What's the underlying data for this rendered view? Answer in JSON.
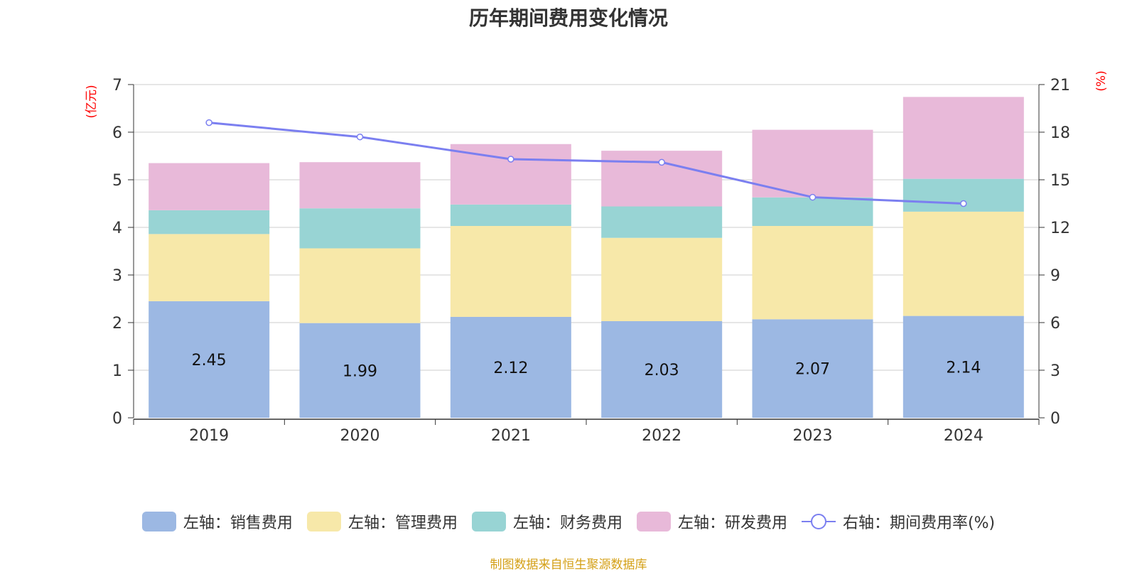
{
  "chart_data": {
    "type": "bar",
    "stacked": true,
    "title": "历年期间费用变化情况",
    "categories": [
      "2019",
      "2020",
      "2021",
      "2022",
      "2023",
      "2024"
    ],
    "left_axis": {
      "unit_label": "(亿元)",
      "ylim": [
        0,
        7
      ],
      "ticks": [
        0,
        1,
        2,
        3,
        4,
        5,
        6,
        7
      ]
    },
    "right_axis": {
      "unit_label": "(%)",
      "ylim": [
        0,
        21
      ],
      "ticks": [
        0,
        3,
        6,
        9,
        12,
        15,
        18,
        21
      ]
    },
    "series": [
      {
        "name": "左轴：销售费用",
        "axis": "left",
        "color": "#9cb8e3",
        "values": [
          2.45,
          1.99,
          2.12,
          2.03,
          2.07,
          2.14
        ],
        "show_labels": true
      },
      {
        "name": "左轴：管理费用",
        "axis": "left",
        "color": "#f7e8a9",
        "values": [
          1.41,
          1.57,
          1.91,
          1.75,
          1.96,
          2.19
        ],
        "show_labels": false
      },
      {
        "name": "左轴：财务费用",
        "axis": "left",
        "color": "#98d4d4",
        "values": [
          0.5,
          0.84,
          0.45,
          0.66,
          0.6,
          0.69
        ],
        "show_labels": false
      },
      {
        "name": "左轴：研发费用",
        "axis": "left",
        "color": "#e8b9d9",
        "values": [
          0.99,
          0.97,
          1.27,
          1.17,
          1.42,
          1.72
        ],
        "show_labels": false
      }
    ],
    "line_series": {
      "name": "右轴：期间费用率(%)",
      "axis": "right",
      "type": "line",
      "color": "#7b7ff0",
      "values": [
        18.6,
        17.7,
        16.3,
        16.1,
        13.9,
        13.5
      ]
    },
    "grid": true,
    "legend_position": "bottom-center"
  },
  "source": "制图数据来自恒生聚源数据库"
}
